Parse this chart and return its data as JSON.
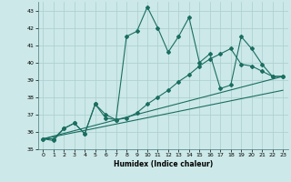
{
  "xlabel": "Humidex (Indice chaleur)",
  "background_color": "#cce8e8",
  "grid_color": "#aacece",
  "line_color": "#1a6e60",
  "xlim": [
    -0.5,
    23.5
  ],
  "ylim": [
    35,
    43.5
  ],
  "yticks": [
    35,
    36,
    37,
    38,
    39,
    40,
    41,
    42,
    43
  ],
  "xticks": [
    0,
    1,
    2,
    3,
    4,
    5,
    6,
    7,
    8,
    9,
    10,
    11,
    12,
    13,
    14,
    15,
    16,
    17,
    18,
    19,
    20,
    21,
    22,
    23
  ],
  "series_spiky": {
    "x": [
      0,
      1,
      2,
      3,
      4,
      5,
      6,
      7,
      8,
      9,
      10,
      11,
      12,
      13,
      14,
      15,
      16,
      17,
      18,
      19,
      20,
      21,
      22,
      23
    ],
    "y": [
      35.6,
      35.5,
      36.2,
      36.5,
      35.9,
      37.6,
      36.8,
      36.7,
      41.5,
      41.8,
      43.2,
      42.0,
      40.6,
      41.5,
      42.6,
      40.0,
      40.5,
      38.5,
      38.7,
      41.5,
      40.8,
      39.9,
      39.2,
      39.2
    ]
  },
  "series_smooth": {
    "x": [
      0,
      1,
      2,
      3,
      4,
      5,
      6,
      7,
      8,
      9,
      10,
      11,
      12,
      13,
      14,
      15,
      16,
      17,
      18,
      19,
      20,
      21,
      22,
      23
    ],
    "y": [
      35.6,
      35.6,
      36.2,
      36.5,
      35.9,
      37.6,
      37.0,
      36.7,
      36.8,
      37.1,
      37.6,
      38.0,
      38.4,
      38.9,
      39.3,
      39.8,
      40.2,
      40.5,
      40.8,
      39.9,
      39.8,
      39.5,
      39.2,
      39.2
    ]
  },
  "trend1": {
    "x": [
      0,
      23
    ],
    "y": [
      35.6,
      39.2
    ]
  },
  "trend2": {
    "x": [
      0,
      23
    ],
    "y": [
      35.6,
      38.4
    ]
  }
}
